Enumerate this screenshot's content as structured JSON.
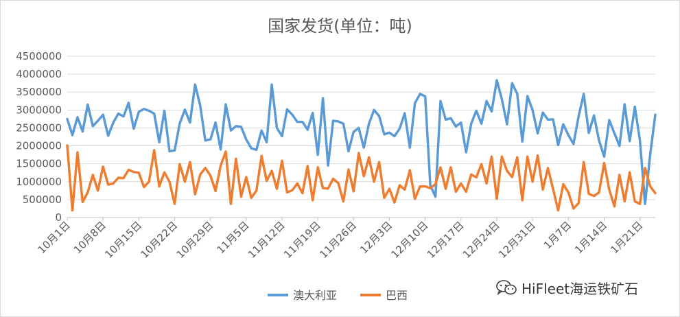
{
  "chart_data": {
    "type": "line",
    "title": "国家发货(单位：吨)",
    "xlabel": "",
    "ylabel": "",
    "ylim": [
      0,
      4500000
    ],
    "yticks": [
      0,
      500000,
      1000000,
      1500000,
      2000000,
      2500000,
      3000000,
      3500000,
      4000000,
      4500000
    ],
    "ytick_labels": [
      "0",
      "500000",
      "1000000",
      "1500000",
      "2000000",
      "2500000",
      "3000000",
      "3500000",
      "4000000",
      "4500000"
    ],
    "xtick_labels": [
      "10月1日",
      "10月8日",
      "10月15日",
      "10月22日",
      "10月29日",
      "11月5日",
      "11月12日",
      "11月19日",
      "11月26日",
      "12月3日",
      "12月10日",
      "12月17日",
      "12月24日",
      "12月31日",
      "1月7日",
      "1月14日",
      "1月21日"
    ],
    "grid": "horizontal",
    "legend": "bottom",
    "series": [
      {
        "name": "澳大利亚",
        "color": "#5b9bd5",
        "values": [
          2750000,
          2300000,
          2800000,
          2400000,
          3150000,
          2550000,
          2700000,
          2870000,
          2280000,
          2650000,
          2900000,
          2820000,
          3200000,
          2480000,
          2950000,
          3030000,
          2980000,
          2900000,
          2100000,
          2980000,
          1850000,
          1870000,
          2620000,
          3010000,
          2650000,
          3710000,
          3120000,
          2150000,
          2180000,
          2650000,
          1900000,
          3160000,
          2430000,
          2550000,
          2530000,
          2180000,
          1930000,
          1890000,
          2430000,
          2100000,
          3710000,
          2500000,
          2270000,
          3020000,
          2870000,
          2670000,
          2670000,
          2450000,
          2920000,
          1750000,
          3330000,
          1450000,
          2700000,
          2680000,
          2620000,
          1850000,
          2390000,
          2500000,
          1950000,
          2620000,
          3000000,
          2830000,
          2320000,
          2370000,
          2270000,
          2480000,
          2910000,
          1950000,
          3190000,
          3450000,
          3380000,
          900000,
          580000,
          3250000,
          2730000,
          2770000,
          2540000,
          2650000,
          1820000,
          2620000,
          2980000,
          2620000,
          3250000,
          2960000,
          3830000,
          3300000,
          2600000,
          3750000,
          3450000,
          2120000,
          3390000,
          3000000,
          2350000,
          2930000,
          2730000,
          2740000,
          2020000,
          2600000,
          2300000,
          2050000,
          2820000,
          3450000,
          2360000,
          2850000,
          2150000,
          1700000,
          2720000,
          2350000,
          2000000,
          3160000,
          2130000,
          3090000,
          2150000,
          380000,
          1750000,
          2870000
        ]
      },
      {
        "name": "巴西",
        "color": "#ed7d31",
        "values": [
          2010000,
          200000,
          1820000,
          430000,
          700000,
          1190000,
          750000,
          1420000,
          920000,
          950000,
          1110000,
          1100000,
          1330000,
          1270000,
          1250000,
          850000,
          1000000,
          1880000,
          870000,
          1260000,
          1000000,
          380000,
          1490000,
          1000000,
          1550000,
          650000,
          1200000,
          1380000,
          1170000,
          740000,
          1450000,
          1840000,
          380000,
          1640000,
          580000,
          1130000,
          550000,
          750000,
          1720000,
          1020000,
          1300000,
          800000,
          1580000,
          700000,
          760000,
          950000,
          680000,
          1440000,
          480000,
          1400000,
          820000,
          810000,
          1080000,
          960000,
          450000,
          1340000,
          730000,
          1800000,
          1150000,
          1680000,
          1000000,
          1550000,
          550000,
          800000,
          420000,
          900000,
          780000,
          1320000,
          520000,
          870000,
          870000,
          820000,
          930000,
          1400000,
          800000,
          1400000,
          720000,
          950000,
          720000,
          1200000,
          1120000,
          1490000,
          950000,
          1700000,
          520000,
          1700000,
          1300000,
          1130000,
          1680000,
          480000,
          1700000,
          1000000,
          1730000,
          780000,
          1380000,
          800000,
          200000,
          930000,
          700000,
          250000,
          400000,
          1550000,
          660000,
          600000,
          700000,
          1520000,
          780000,
          310000,
          1190000,
          450000,
          1260000,
          450000,
          380000,
          1380000,
          870000,
          680000
        ]
      }
    ]
  },
  "watermark": {
    "text": "HiFleet海运铁矿石",
    "icon": "wechat-icon"
  }
}
